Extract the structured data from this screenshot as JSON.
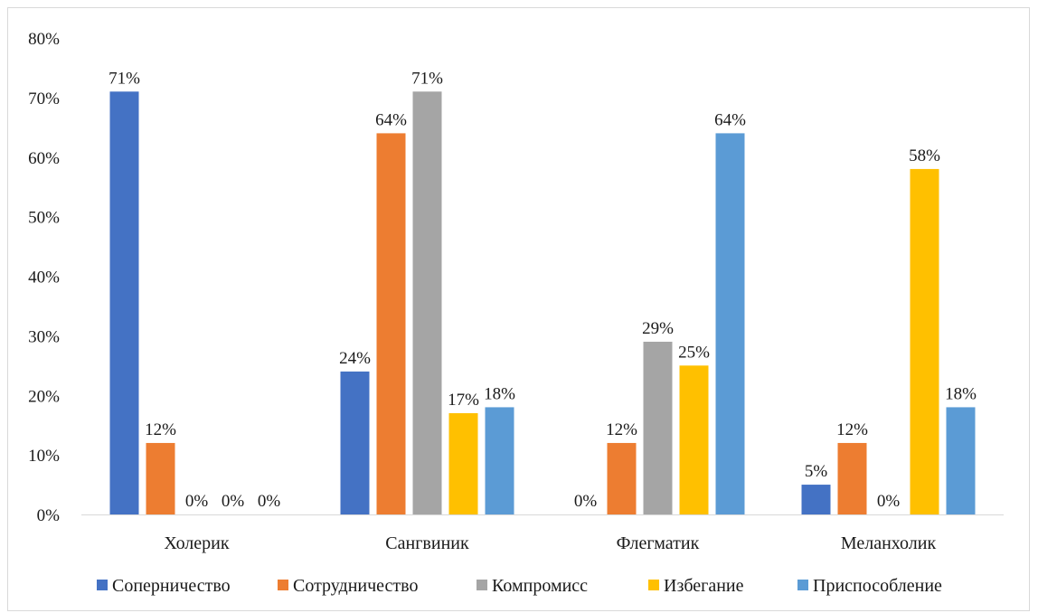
{
  "chart_data": {
    "type": "bar",
    "categories": [
      "Холерик",
      "Сангвиник",
      "Флегматик",
      "Меланхолик"
    ],
    "series": [
      {
        "name": "Соперничество",
        "values": [
          71,
          24,
          0,
          5
        ],
        "labels": [
          "71%",
          "24%",
          "0%",
          "5%"
        ],
        "color": "#4472c4"
      },
      {
        "name": "Сотрудничество",
        "values": [
          12,
          64,
          12,
          12
        ],
        "labels": [
          "12%",
          "64%",
          "12%",
          "12%"
        ],
        "color": "#ed7d31"
      },
      {
        "name": "Компромисс",
        "values": [
          0,
          71,
          29,
          0
        ],
        "labels": [
          "0%",
          "71%",
          "29%",
          "0%"
        ],
        "color": "#a5a5a5"
      },
      {
        "name": "Избегание",
        "values": [
          0,
          17,
          25,
          58
        ],
        "labels": [
          "0%",
          "17%",
          "25%",
          "58%"
        ],
        "color": "#ffc000"
      },
      {
        "name": "Приспособление",
        "values": [
          0,
          18,
          64,
          18
        ],
        "labels": [
          "0%",
          "18%",
          "64%",
          "18%"
        ],
        "color": "#5b9bd5"
      }
    ],
    "yticks": [
      "0%",
      "10%",
      "20%",
      "30%",
      "40%",
      "50%",
      "60%",
      "70%",
      "80%"
    ],
    "ylim": [
      0,
      80
    ],
    "grid": false,
    "legend": "bottom",
    "title": "",
    "xlabel": "",
    "ylabel": ""
  }
}
